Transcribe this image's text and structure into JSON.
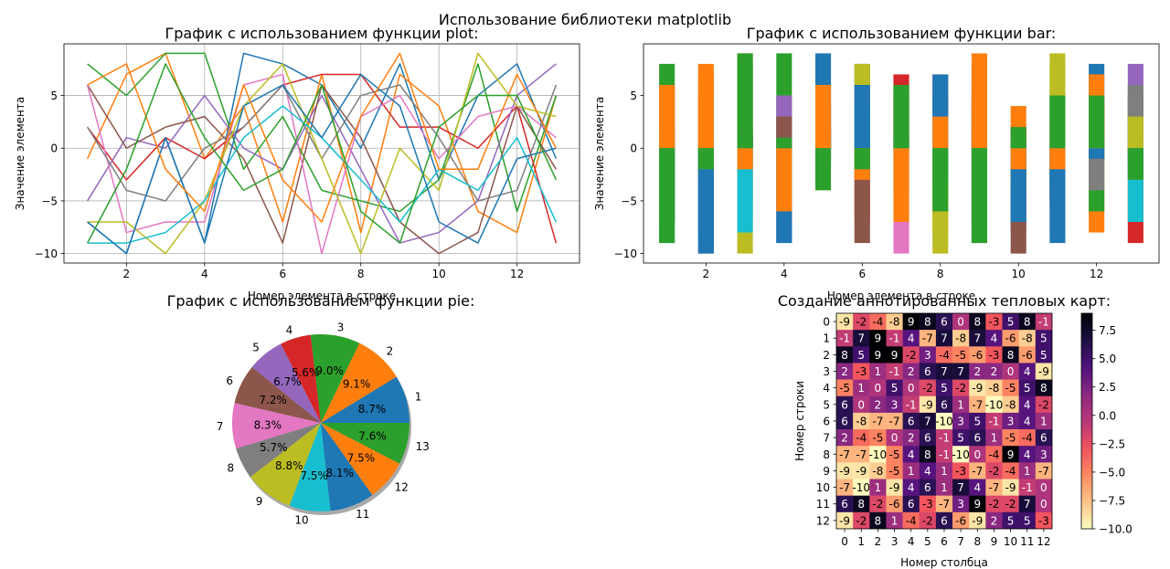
{
  "suptitle": "Использование библиотеки matplotlib",
  "chart_data": [
    {
      "type": "line",
      "title": "График с использованием функции plot:",
      "xlabel": "Номер элемента в строке",
      "ylabel": "Значение элемента",
      "grid": true,
      "xlim": [
        0.4,
        13.6
      ],
      "ylim": [
        -10.9,
        9.9
      ],
      "xticks": [
        2,
        4,
        6,
        8,
        10,
        12
      ],
      "yticks": [
        -10,
        -5,
        0,
        5
      ],
      "x": [
        1,
        2,
        3,
        4,
        5,
        6,
        7,
        8,
        9,
        10,
        11,
        12,
        13
      ],
      "series": [
        {
          "color": "#1f77b4",
          "values": [
            -7,
            -10,
            1,
            -9,
            9,
            8,
            6,
            0,
            8,
            -3,
            5,
            8,
            -1
          ]
        },
        {
          "color": "#ff7f0e",
          "values": [
            -1,
            7,
            9,
            -1,
            4,
            -7,
            7,
            -8,
            7,
            4,
            -6,
            -8,
            5
          ]
        },
        {
          "color": "#2ca02c",
          "values": [
            8,
            5,
            9,
            9,
            -2,
            3,
            -4,
            -5,
            -6,
            -3,
            8,
            -6,
            5
          ]
        },
        {
          "color": "#d62728",
          "values": [
            2,
            -3,
            1,
            -1,
            2,
            6,
            7,
            7,
            2,
            2,
            0,
            4,
            -9
          ]
        },
        {
          "color": "#9467bd",
          "values": [
            -5,
            1,
            0,
            5,
            0,
            -2,
            5,
            -2,
            -9,
            -8,
            -5,
            5,
            8
          ]
        },
        {
          "color": "#8c564b",
          "values": [
            6,
            0,
            2,
            3,
            -1,
            -9,
            6,
            1,
            -7,
            -10,
            -8,
            4,
            -2
          ]
        },
        {
          "color": "#e377c2",
          "values": [
            6,
            -8,
            -7,
            -7,
            6,
            7,
            -10,
            3,
            5,
            -1,
            3,
            4,
            1
          ]
        },
        {
          "color": "#7f7f7f",
          "values": [
            2,
            -4,
            -5,
            0,
            2,
            6,
            -1,
            5,
            6,
            1,
            -5,
            -4,
            6
          ]
        },
        {
          "color": "#bcbd22",
          "values": [
            -7,
            -7,
            -10,
            -5,
            4,
            8,
            -1,
            -10,
            0,
            -4,
            9,
            4,
            3
          ]
        },
        {
          "color": "#17becf",
          "values": [
            -9,
            -9,
            -8,
            -5,
            1,
            4,
            1,
            -3,
            -7,
            -2,
            -4,
            1,
            -7
          ]
        },
        {
          "color": "#1f77b4",
          "values": [
            -7,
            -10,
            1,
            -9,
            4,
            6,
            1,
            7,
            4,
            -7,
            -9,
            -1,
            0
          ]
        },
        {
          "color": "#ff7f0e",
          "values": [
            6,
            8,
            -2,
            -6,
            6,
            -3,
            -7,
            3,
            9,
            -2,
            -2,
            7,
            0
          ]
        },
        {
          "color": "#2ca02c",
          "values": [
            -9,
            -2,
            8,
            1,
            -4,
            -2,
            6,
            -6,
            -9,
            2,
            5,
            5,
            -3
          ]
        }
      ]
    },
    {
      "type": "bar",
      "title": "График с использованием функции bar:",
      "xlabel": "Номер элемента в строке",
      "ylabel": "Значение элемента",
      "xlim": [
        0.4,
        13.6
      ],
      "ylim": [
        -10.9,
        9.9
      ],
      "xticks": [
        2,
        4,
        6,
        8,
        10,
        12
      ],
      "yticks": [
        -10,
        -5,
        0,
        5
      ],
      "categories": [
        1,
        2,
        3,
        4,
        5,
        6,
        7,
        8,
        9,
        10,
        11,
        12,
        13
      ],
      "series": [
        {
          "color": "#1f77b4",
          "values": [
            -7,
            -10,
            1,
            -9,
            9,
            8,
            6,
            0,
            8,
            -3,
            5,
            8,
            -1
          ]
        },
        {
          "color": "#ff7f0e",
          "values": [
            -1,
            7,
            9,
            -1,
            4,
            -7,
            7,
            -8,
            7,
            4,
            -6,
            -8,
            5
          ]
        },
        {
          "color": "#2ca02c",
          "values": [
            8,
            5,
            9,
            9,
            -2,
            3,
            -4,
            -5,
            -6,
            -3,
            8,
            -6,
            5
          ]
        },
        {
          "color": "#d62728",
          "values": [
            2,
            -3,
            1,
            -1,
            2,
            6,
            7,
            7,
            2,
            2,
            0,
            4,
            -9
          ]
        },
        {
          "color": "#9467bd",
          "values": [
            -5,
            1,
            0,
            5,
            0,
            -2,
            5,
            -2,
            -9,
            -8,
            -5,
            5,
            8
          ]
        },
        {
          "color": "#8c564b",
          "values": [
            6,
            0,
            2,
            3,
            -1,
            -9,
            6,
            1,
            -7,
            -10,
            -8,
            4,
            -2
          ]
        },
        {
          "color": "#e377c2",
          "values": [
            6,
            -8,
            -7,
            -7,
            6,
            7,
            -10,
            3,
            5,
            -1,
            3,
            4,
            1
          ]
        },
        {
          "color": "#7f7f7f",
          "values": [
            2,
            -4,
            -5,
            0,
            2,
            6,
            -1,
            5,
            6,
            1,
            -5,
            -4,
            6
          ]
        },
        {
          "color": "#bcbd22",
          "values": [
            -7,
            -7,
            -10,
            -5,
            4,
            8,
            -1,
            -10,
            0,
            -4,
            9,
            4,
            3
          ]
        },
        {
          "color": "#17becf",
          "values": [
            -9,
            -9,
            -8,
            -5,
            1,
            4,
            1,
            -3,
            -7,
            -2,
            -4,
            1,
            -7
          ]
        },
        {
          "color": "#1f77b4",
          "values": [
            -7,
            -10,
            1,
            -9,
            4,
            6,
            1,
            7,
            4,
            -7,
            -9,
            -1,
            0
          ]
        },
        {
          "color": "#ff7f0e",
          "values": [
            6,
            8,
            -2,
            -6,
            6,
            -3,
            -7,
            3,
            9,
            -2,
            -2,
            7,
            0
          ]
        },
        {
          "color": "#2ca02c",
          "values": [
            -9,
            -2,
            8,
            1,
            -4,
            -2,
            6,
            -6,
            -9,
            2,
            5,
            5,
            -3
          ]
        }
      ]
    },
    {
      "type": "pie",
      "title": "График с использованием функции pie:",
      "shadow": true,
      "labels": [
        "1",
        "2",
        "3",
        "4",
        "5",
        "6",
        "7",
        "8",
        "9",
        "10",
        "11",
        "12",
        "13"
      ],
      "values": [
        8.7,
        9.1,
        9.0,
        5.6,
        6.7,
        7.2,
        8.3,
        5.7,
        8.8,
        7.5,
        8.1,
        7.5,
        7.6
      ],
      "pct_labels": [
        "8.7%",
        "9.1%",
        "9.0%",
        "5.6%",
        "6.7%",
        "7.2%",
        "8.3%",
        "5.7%",
        "8.8%",
        "7.5%",
        "8.1%",
        "7.5%",
        "7.6%"
      ],
      "colors": [
        "#1f77b4",
        "#ff7f0e",
        "#2ca02c",
        "#d62728",
        "#9467bd",
        "#8c564b",
        "#e377c2",
        "#7f7f7f",
        "#bcbd22",
        "#17becf",
        "#1f77b4",
        "#ff7f0e",
        "#2ca02c"
      ]
    },
    {
      "type": "heatmap",
      "title": "Создание аннотированных тепловых карт:",
      "xlabel": "Номер столбца",
      "ylabel": "Номер строки",
      "colormap": "magma_r",
      "vmin": -10,
      "vmax": 9,
      "colorbar_ticks": [
        {
          "value": 7.5,
          "label": "7.5"
        },
        {
          "value": 5.0,
          "label": "5.0"
        },
        {
          "value": 2.5,
          "label": "2.5"
        },
        {
          "value": 0.0,
          "label": "0.0"
        },
        {
          "value": -2.5,
          "label": "−2.5"
        },
        {
          "value": -5.0,
          "label": "−5.0"
        },
        {
          "value": -7.5,
          "label": "−7.5"
        },
        {
          "value": -10.0,
          "label": "−10.0"
        }
      ],
      "row_labels": [
        "0",
        "1",
        "2",
        "3",
        "4",
        "5",
        "6",
        "7",
        "8",
        "9",
        "10",
        "11",
        "12"
      ],
      "col_labels": [
        "0",
        "1",
        "2",
        "3",
        "4",
        "5",
        "6",
        "7",
        "8",
        "9",
        "10",
        "11",
        "12"
      ],
      "values": [
        [
          -9,
          -2,
          -4,
          -8,
          9,
          8,
          6,
          0,
          8,
          -3,
          5,
          8,
          -1
        ],
        [
          -1,
          7,
          9,
          -1,
          4,
          -7,
          7,
          -8,
          7,
          4,
          -6,
          -8,
          5
        ],
        [
          8,
          5,
          9,
          9,
          -2,
          3,
          -4,
          -5,
          -6,
          -3,
          8,
          -6,
          5
        ],
        [
          2,
          -3,
          1,
          -1,
          2,
          6,
          7,
          7,
          2,
          2,
          0,
          4,
          -9
        ],
        [
          -5,
          1,
          0,
          5,
          0,
          -2,
          5,
          -2,
          -9,
          -8,
          -5,
          5,
          8
        ],
        [
          6,
          0,
          2,
          3,
          -1,
          -9,
          6,
          1,
          -7,
          -10,
          -8,
          4,
          -2
        ],
        [
          6,
          -8,
          -7,
          -7,
          6,
          7,
          -10,
          3,
          5,
          -1,
          3,
          4,
          1
        ],
        [
          2,
          -4,
          -5,
          0,
          2,
          6,
          -1,
          5,
          6,
          1,
          -5,
          -4,
          6
        ],
        [
          -7,
          -7,
          -10,
          -5,
          4,
          8,
          -1,
          -10,
          0,
          -4,
          9,
          4,
          3
        ],
        [
          -9,
          -9,
          -8,
          -5,
          1,
          4,
          1,
          -3,
          -7,
          -2,
          -4,
          1,
          -7
        ],
        [
          -7,
          -10,
          1,
          -9,
          4,
          6,
          1,
          7,
          4,
          -7,
          -9,
          -1,
          0
        ],
        [
          6,
          8,
          -2,
          -6,
          6,
          -3,
          -7,
          3,
          9,
          -2,
          -2,
          7,
          0
        ],
        [
          -9,
          -2,
          8,
          1,
          -4,
          -2,
          6,
          -6,
          -9,
          2,
          5,
          5,
          -3
        ]
      ]
    }
  ]
}
